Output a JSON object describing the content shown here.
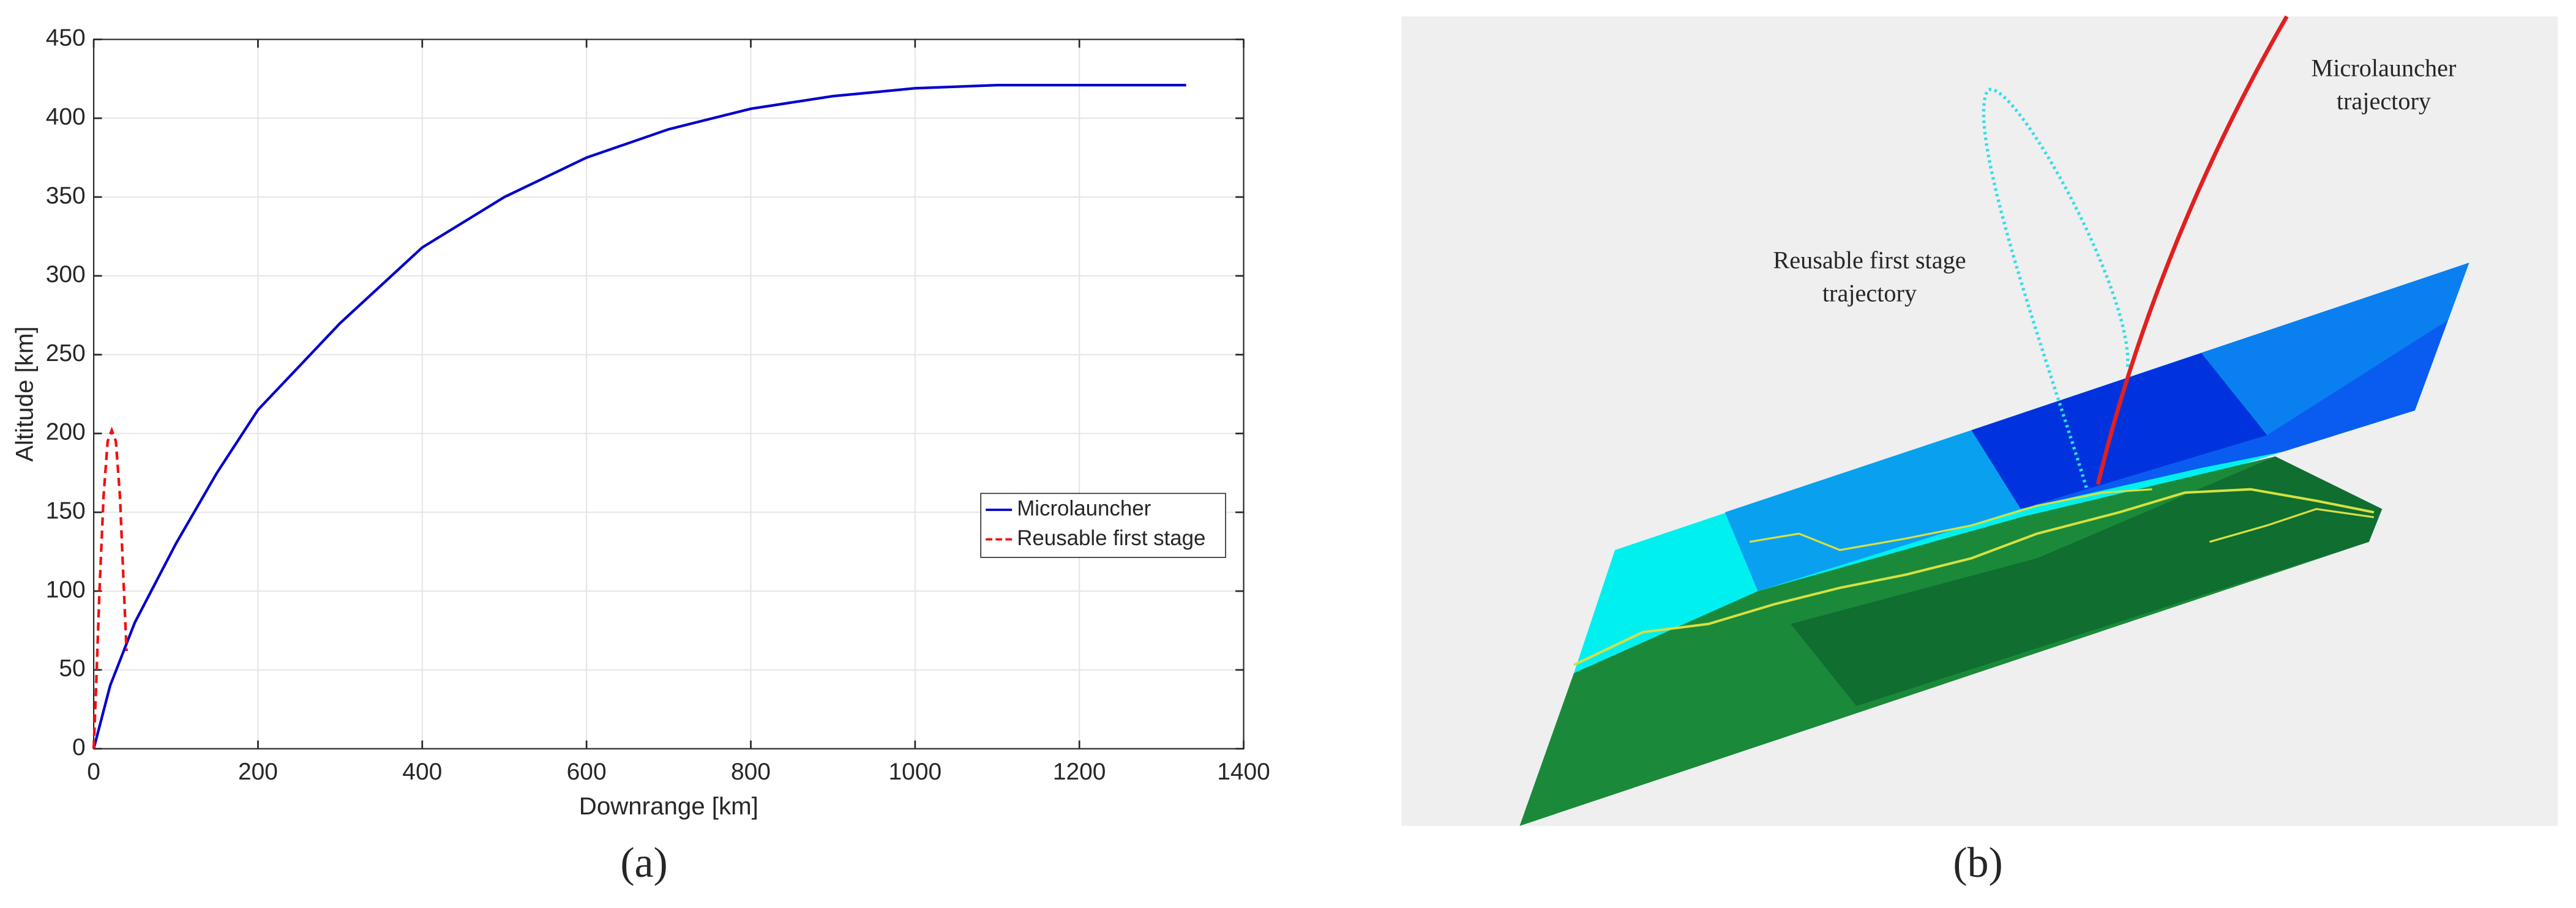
{
  "chart_data": {
    "type": "line",
    "xlabel": "Downrange [km]",
    "ylabel": "Altitude [km]",
    "xlim": [
      0,
      1400
    ],
    "xticks": [
      0,
      200,
      400,
      600,
      800,
      1000,
      1200,
      1400
    ],
    "ylim": [
      0,
      450
    ],
    "yticks": [
      0,
      50,
      100,
      150,
      200,
      250,
      300,
      350,
      400,
      450
    ],
    "grid": true,
    "legend": "east",
    "series": [
      {
        "name": "Microlauncher",
        "color": "#0000cc",
        "dash": "solid",
        "x": [
          0,
          20,
          50,
          100,
          150,
          200,
          300,
          400,
          500,
          600,
          700,
          800,
          900,
          1000,
          1100,
          1200,
          1330
        ],
        "values": [
          0,
          40,
          80,
          130,
          175,
          215,
          270,
          318,
          350,
          375,
          393,
          406,
          414,
          419,
          421,
          421,
          421
        ]
      },
      {
        "name": "Reusable first stage",
        "color": "#ee1111",
        "dash": "dashed",
        "x": [
          0,
          3,
          7,
          12,
          17,
          22,
          27,
          32,
          36,
          40
        ],
        "values": [
          0,
          40,
          100,
          160,
          195,
          202,
          195,
          160,
          110,
          62
        ]
      }
    ]
  },
  "panel_labels": [
    "(a)",
    "(b)"
  ],
  "render": {
    "microlauncher_label": [
      "Microlauncher",
      "trajectory"
    ],
    "reusable_label": [
      "Reusable first stage",
      "trajectory"
    ]
  }
}
